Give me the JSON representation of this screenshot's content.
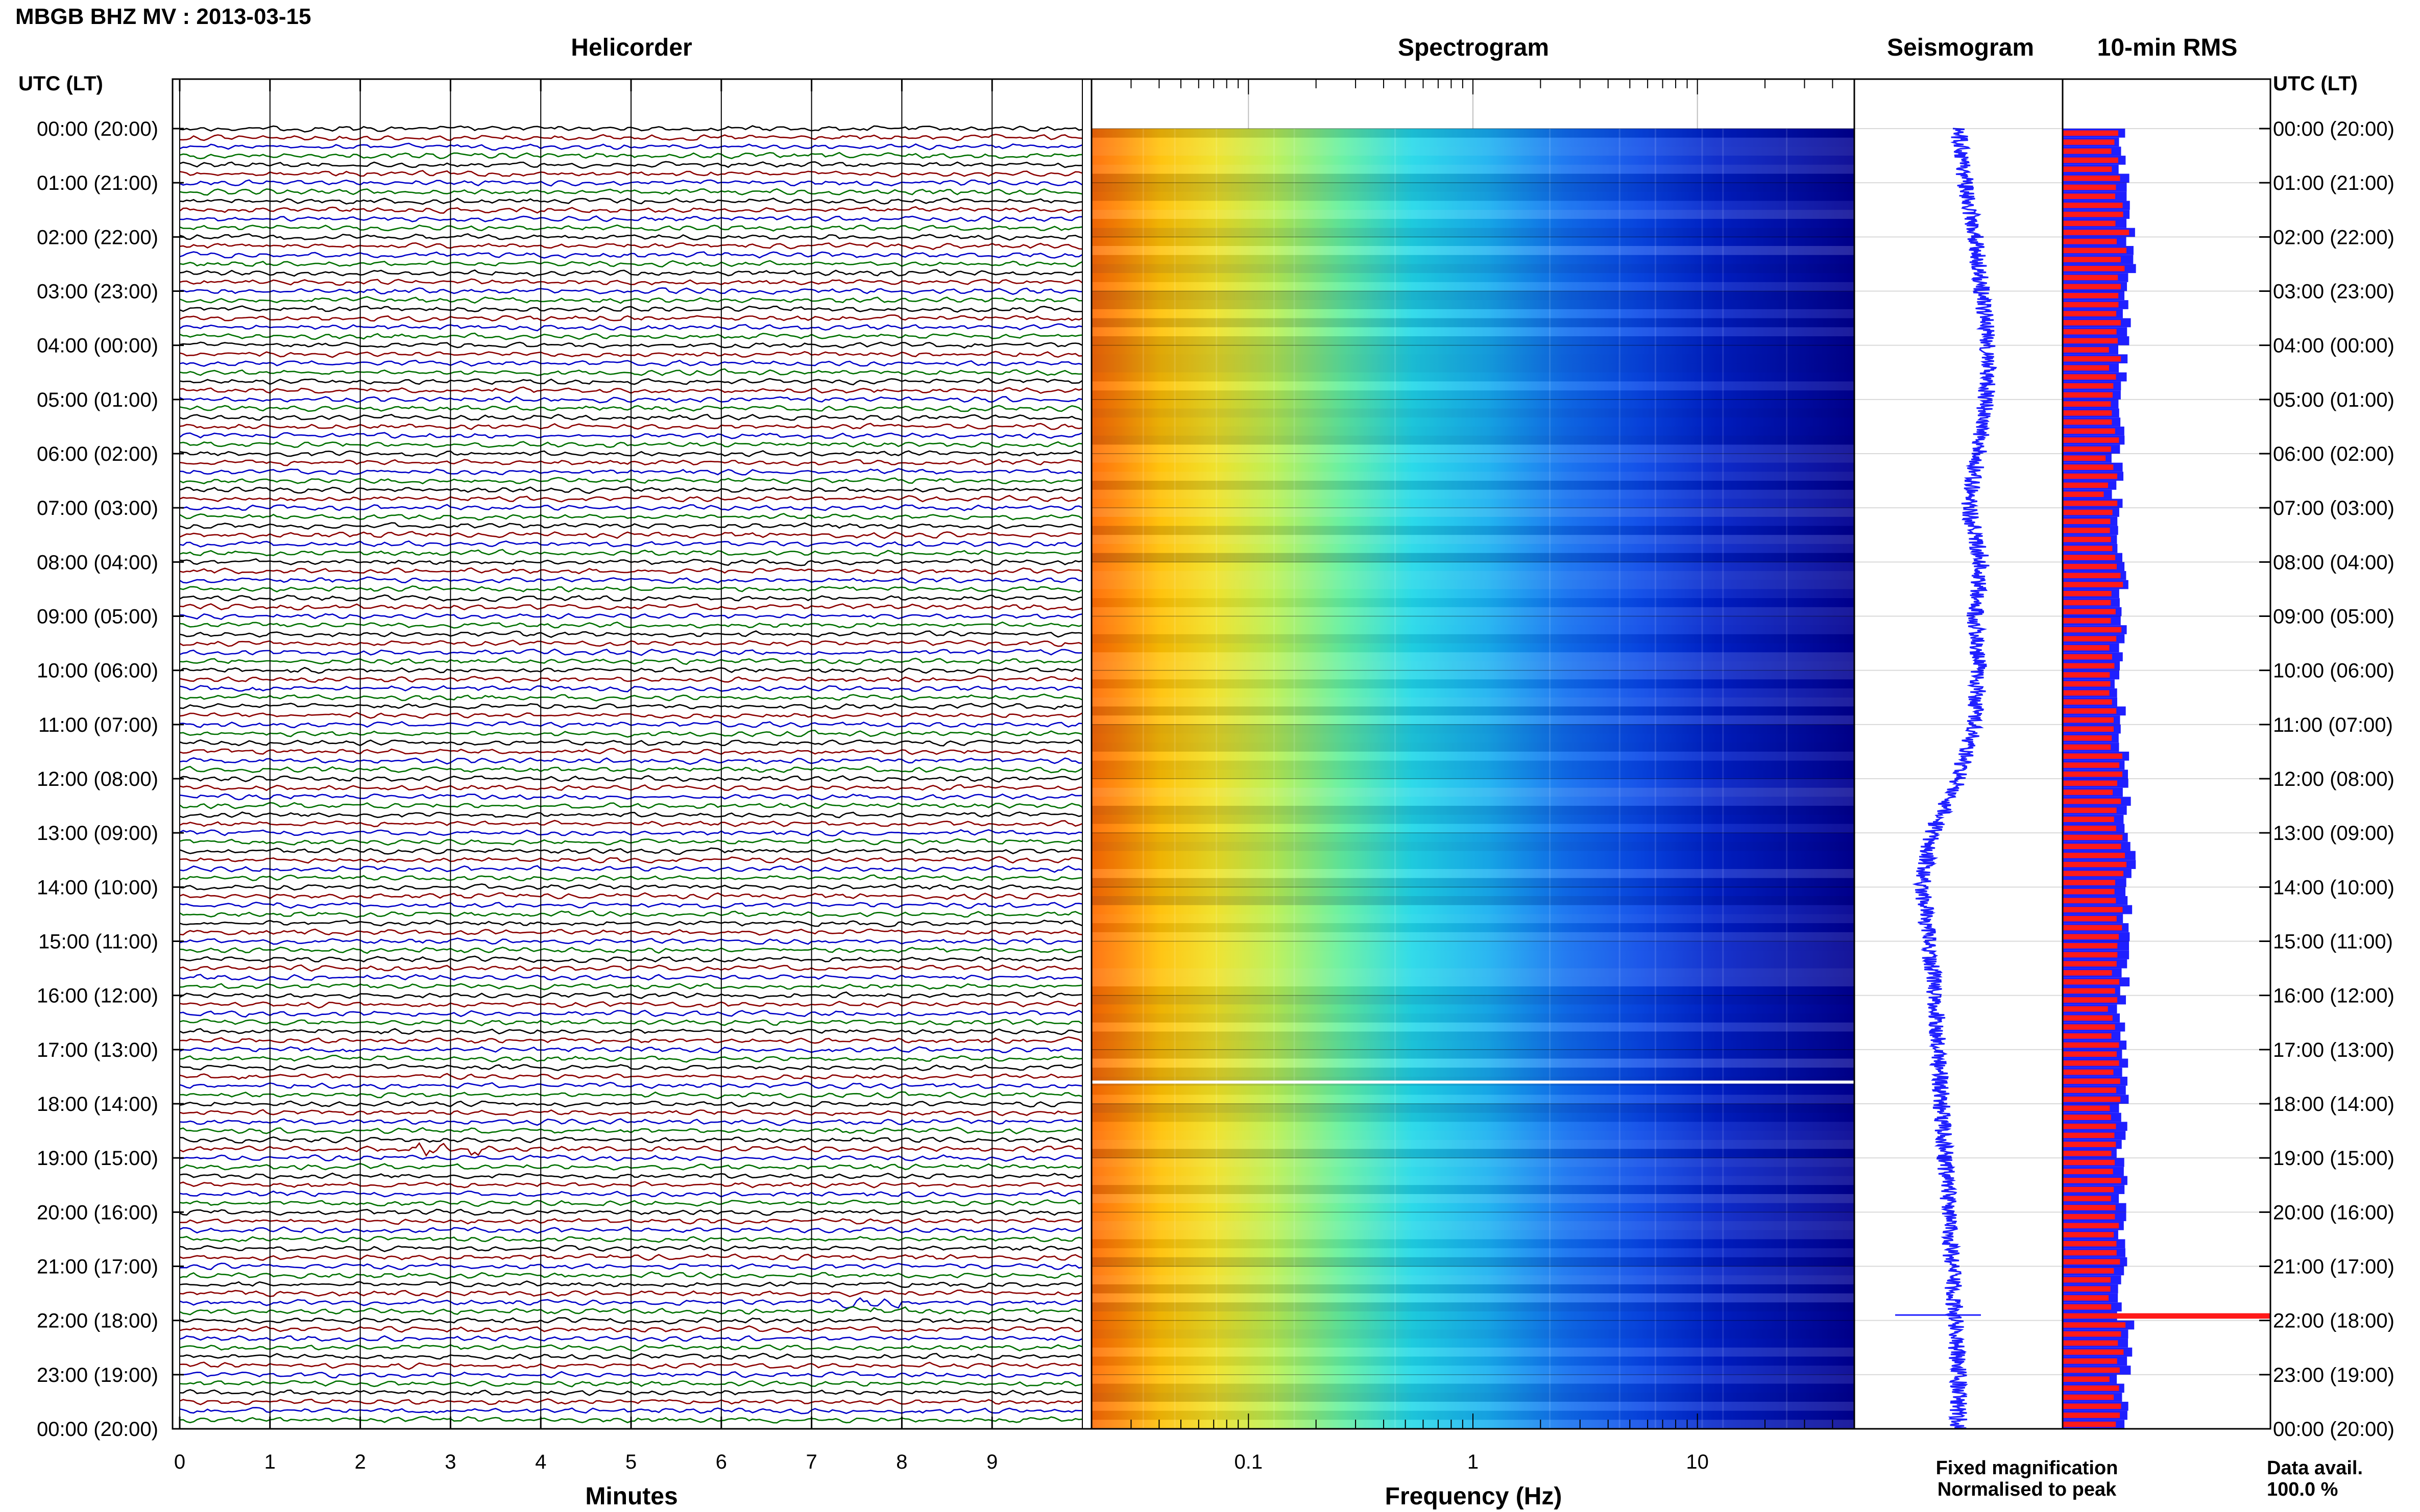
{
  "figure": {
    "title": "MBGB BHZ MV : 2013-03-15",
    "panel_titles": {
      "helicorder": "Helicorder",
      "spectrogram": "Spectrogram",
      "seismogram": "Seismogram",
      "rms": "10-min RMS"
    },
    "utc_header_left": "UTC (LT)",
    "utc_header_right": "UTC (LT)",
    "legend": {
      "fixed_label": "Fixed magnification",
      "fixed_color": "#1f1fff",
      "normalised_label": "Normalised to peak",
      "normalised_color": "#ff1a1a"
    },
    "data_avail": {
      "label": "Data avail.",
      "value": "100.0 %"
    }
  },
  "chart_data": [
    {
      "type": "line",
      "name": "helicorder",
      "xlabel": "Minutes",
      "x_ticks": [
        0,
        1,
        2,
        3,
        4,
        5,
        6,
        7,
        8,
        9
      ],
      "xlim": [
        0,
        10
      ],
      "rows_per_hour": 6,
      "trace_colors": [
        "#000000",
        "#8b0000",
        "#0000c8",
        "#007000"
      ],
      "time_labels": [
        "00:00 (20:00)",
        "01:00 (21:00)",
        "02:00 (22:00)",
        "03:00 (23:00)",
        "04:00 (00:00)",
        "05:00 (01:00)",
        "06:00 (02:00)",
        "07:00 (03:00)",
        "08:00 (04:00)",
        "09:00 (05:00)",
        "10:00 (06:00)",
        "11:00 (07:00)",
        "12:00 (08:00)",
        "13:00 (09:00)",
        "14:00 (10:00)",
        "15:00 (11:00)",
        "16:00 (12:00)",
        "17:00 (13:00)",
        "18:00 (14:00)",
        "19:00 (15:00)",
        "20:00 (16:00)",
        "21:00 (17:00)",
        "22:00 (18:00)",
        "23:00 (19:00)",
        "00:00 (20:00)"
      ],
      "events": [
        {
          "hour": 18.8,
          "minute": 3.0,
          "amplitude": "large"
        },
        {
          "hour": 21.75,
          "minute": 7.6,
          "amplitude": "medium"
        }
      ]
    },
    {
      "type": "heatmap",
      "name": "spectrogram",
      "xlabel": "Frequency (Hz)",
      "x_scale": "log",
      "xlim": [
        0.02,
        50
      ],
      "x_ticks": [
        0.1,
        1,
        10
      ],
      "x_tick_labels": [
        "0.1",
        "1",
        "10"
      ],
      "ylim_hours": [
        0,
        24
      ],
      "data_gap_hour": 17.6,
      "colormap": [
        "#00008b",
        "#0000ff",
        "#1e90ff",
        "#00ffff",
        "#7fff7f",
        "#ffff00",
        "#ffa500",
        "#ff4500"
      ]
    },
    {
      "type": "line",
      "name": "seismogram",
      "note_spike_hour": 21.9,
      "offset_curve_hours": [
        0,
        1,
        2,
        3,
        4,
        5,
        6,
        7,
        8,
        9,
        10,
        11,
        12,
        13,
        14,
        15,
        16,
        17,
        18,
        19,
        20,
        21,
        22,
        23,
        24
      ],
      "offset_curve_values": [
        0.0,
        0.1,
        0.25,
        0.35,
        0.45,
        0.42,
        0.3,
        0.15,
        0.35,
        0.25,
        0.3,
        0.25,
        0.0,
        -0.4,
        -0.55,
        -0.45,
        -0.35,
        -0.3,
        -0.25,
        -0.2,
        -0.15,
        -0.1,
        -0.05,
        0.0,
        0.0
      ]
    },
    {
      "type": "bar",
      "name": "10-min RMS",
      "orientation": "horizontal",
      "series": [
        {
          "name": "Fixed magnification",
          "color": "#1f1fff"
        },
        {
          "name": "Normalised to peak",
          "color": "#ff1a1a"
        }
      ],
      "rms_hourly_profile": [
        0.62,
        0.7,
        0.68,
        0.66,
        0.6,
        0.58,
        0.55,
        0.56,
        0.62,
        0.6,
        0.58,
        0.62,
        0.66,
        0.68,
        0.64,
        0.62,
        0.6,
        0.62,
        0.6,
        0.62,
        0.6,
        0.58,
        0.7,
        0.6
      ],
      "peak_hour": 21.8
    }
  ]
}
